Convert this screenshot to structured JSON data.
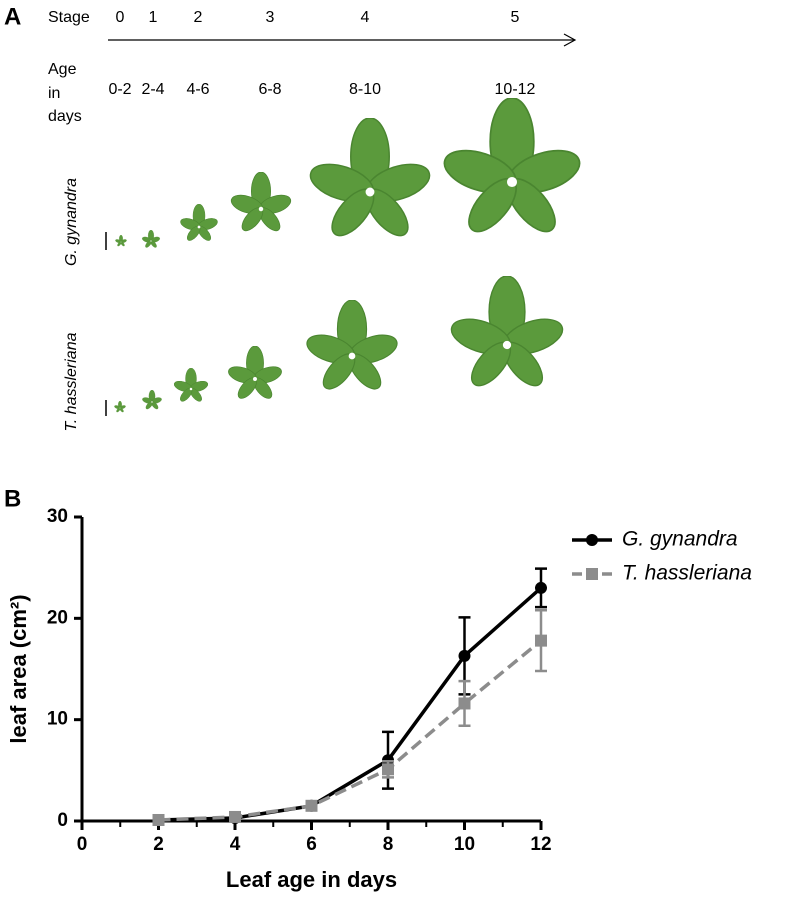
{
  "panel_a": {
    "letter": "A",
    "stage_label": "Stage",
    "stages": [
      "0",
      "1",
      "2",
      "3",
      "4",
      "5"
    ],
    "age_label": [
      "Age",
      "in",
      "days"
    ],
    "ages": [
      "0-2",
      "2-4",
      "4-6",
      "6-8",
      "8-10",
      "10-12"
    ],
    "rows": [
      "G. gynandra",
      "T. hassleriana"
    ]
  },
  "panel_b": {
    "letter": "B"
  },
  "chart_data": {
    "type": "line",
    "x_label": "Leaf age in days",
    "y_label": "leaf area (cm²)",
    "x": [
      2,
      4,
      6,
      8,
      10,
      12
    ],
    "series": [
      {
        "name": "G. gynandra",
        "color": "#000000",
        "dash": false,
        "marker": "circle",
        "values": [
          0.1,
          0.3,
          1.5,
          6.0,
          16.3,
          23.0
        ],
        "errors": [
          0.1,
          0.2,
          0.3,
          2.8,
          3.8,
          1.9
        ]
      },
      {
        "name": "T. hassleriana",
        "color": "#8c8c8c",
        "dash": true,
        "marker": "square",
        "values": [
          0.1,
          0.4,
          1.5,
          5.1,
          11.6,
          17.8
        ],
        "errors": [
          0.1,
          0.1,
          0.3,
          0.8,
          2.2,
          3.0
        ]
      }
    ],
    "xlim": [
      0,
      12
    ],
    "xticks": [
      0,
      2,
      4,
      6,
      8,
      10,
      12
    ],
    "ylim": [
      0,
      30
    ],
    "yticks": [
      0,
      10,
      20,
      30
    ],
    "legend": "top-right"
  }
}
